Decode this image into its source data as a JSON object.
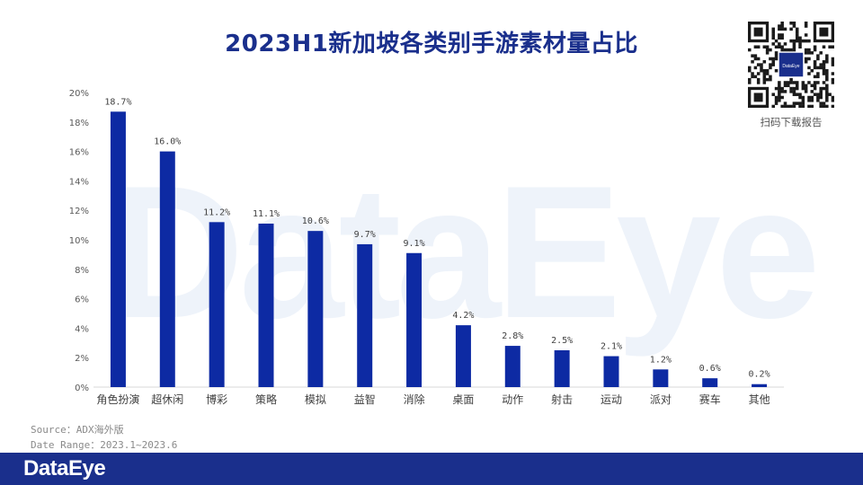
{
  "title": "2023H1新加坡各类别手游素材量占比",
  "qr": {
    "caption": "扫码下载报告",
    "logo_text": "DataEye"
  },
  "watermark": "DataEye",
  "source": "Source：ADX海外版",
  "date_range": "Date Range：2023.1~2023.6",
  "footer": {
    "logo": "DataEye"
  },
  "colors": {
    "bar": "#0d2aa3",
    "title": "#1a2f8c",
    "footer": "#1a2f8c"
  },
  "chart_data": {
    "type": "bar",
    "categories": [
      "角色扮演",
      "超休闲",
      "博彩",
      "策略",
      "模拟",
      "益智",
      "消除",
      "桌面",
      "动作",
      "射击",
      "运动",
      "派对",
      "赛车",
      "其他"
    ],
    "values": [
      18.7,
      16.0,
      11.2,
      11.1,
      10.6,
      9.7,
      9.1,
      4.2,
      2.8,
      2.5,
      2.1,
      1.2,
      0.6,
      0.2
    ],
    "value_labels": [
      "18.7%",
      "16.0%",
      "11.2%",
      "11.1%",
      "10.6%",
      "9.7%",
      "9.1%",
      "4.2%",
      "2.8%",
      "2.5%",
      "2.1%",
      "1.2%",
      "0.6%",
      "0.2%"
    ],
    "ylim": [
      0,
      20
    ],
    "yticks": [
      "0%",
      "2%",
      "4%",
      "6%",
      "8%",
      "10%",
      "12%",
      "14%",
      "16%",
      "18%",
      "20%"
    ],
    "grid": false
  }
}
